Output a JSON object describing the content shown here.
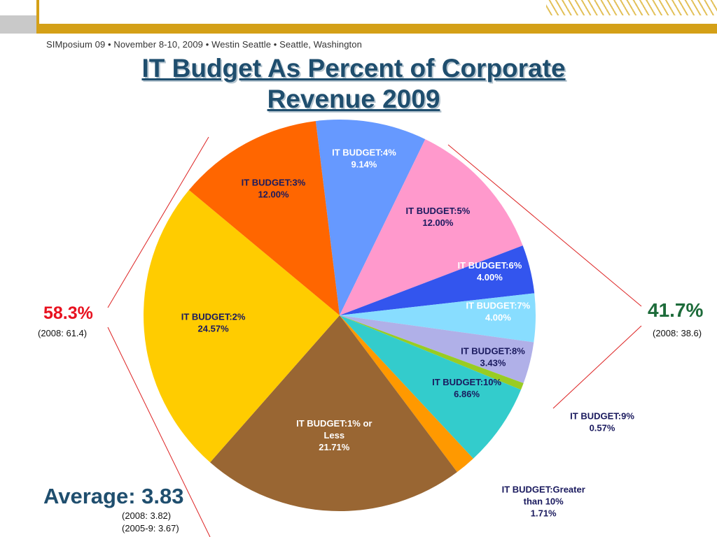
{
  "header": {
    "conference_line": "SIMposium 09  •  November 8-10, 2009  •  Westin Seattle  •  Seattle, Washington"
  },
  "title": "IT Budget As Percent of Corporate Revenue 2009",
  "title_lines": [
    "IT Budget As Percent of Corporate",
    "Revenue 2009"
  ],
  "left_group": {
    "percent": "58.3%",
    "prior": "(2008: 61.4)"
  },
  "right_group": {
    "percent": "41.7%",
    "prior": "(2008: 38.6)"
  },
  "average": {
    "label": "Average: 3.83",
    "prior_2008": "(2008:    3.82)",
    "prior_2005_9": "(2005-9: 3.67)"
  },
  "chart_data": {
    "type": "pie",
    "title": "IT Budget As Percent of Corporate Revenue 2009",
    "slices": [
      {
        "label_lines": [
          "IT BUDGET:4%"
        ],
        "value": 9.14,
        "value_label": "9.14%",
        "color": "#6699ff",
        "text_color": "#ffffff"
      },
      {
        "label_lines": [
          "IT BUDGET:5%"
        ],
        "value": 12.0,
        "value_label": "12.00%",
        "color": "#ff99cc",
        "text_color": "#1a1a5e"
      },
      {
        "label_lines": [
          "IT BUDGET:6%"
        ],
        "value": 4.0,
        "value_label": "4.00%",
        "color": "#3355ee",
        "text_color": "#ffffff"
      },
      {
        "label_lines": [
          "IT BUDGET:7%"
        ],
        "value": 4.0,
        "value_label": "4.00%",
        "color": "#88ddff",
        "text_color": "#ffffff"
      },
      {
        "label_lines": [
          "IT BUDGET:8%"
        ],
        "value": 3.43,
        "value_label": "3.43%",
        "color": "#b0b0e8",
        "text_color": "#1a1a5e"
      },
      {
        "label_lines": [
          "IT BUDGET:9%"
        ],
        "value": 0.57,
        "value_label": "0.57%",
        "color": "#99cc22",
        "text_color": "#1a1a5e"
      },
      {
        "label_lines": [
          "IT BUDGET:10%"
        ],
        "value": 6.86,
        "value_label": "6.86%",
        "color": "#33cccc",
        "text_color": "#1a1a5e"
      },
      {
        "label_lines": [
          "IT BUDGET:Greater",
          "than 10%"
        ],
        "value": 1.71,
        "value_label": "1.71%",
        "color": "#ff9900",
        "text_color": "#1a1a5e"
      },
      {
        "label_lines": [
          "IT BUDGET:1% or",
          "Less"
        ],
        "value": 21.71,
        "value_label": "21.71%",
        "color": "#996633",
        "text_color": "#ffffff"
      },
      {
        "label_lines": [
          "IT BUDGET:2%"
        ],
        "value": 24.57,
        "value_label": "24.57%",
        "color": "#ffcc00",
        "text_color": "#1a1a5e"
      },
      {
        "label_lines": [
          "IT BUDGET:3%"
        ],
        "value": 12.0,
        "value_label": "12.00%",
        "color": "#ff6600",
        "text_color": "#1a1a5e"
      }
    ]
  }
}
